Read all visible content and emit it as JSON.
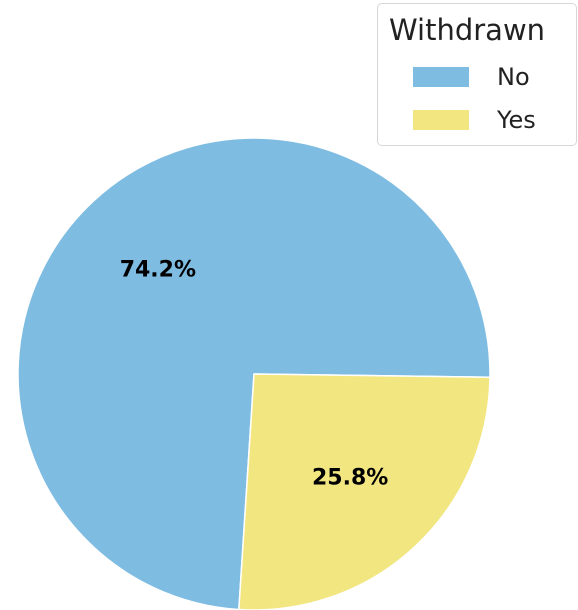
{
  "chart_data": {
    "type": "pie",
    "legend_title": "Withdrawn",
    "legend_position": "top-right",
    "categories": [
      "No",
      "Yes"
    ],
    "values": [
      74.2,
      25.8
    ],
    "labels": [
      "74.2%",
      "25.8%"
    ],
    "colors": [
      "#7fbce2",
      "#f2e681"
    ],
    "title": ""
  }
}
